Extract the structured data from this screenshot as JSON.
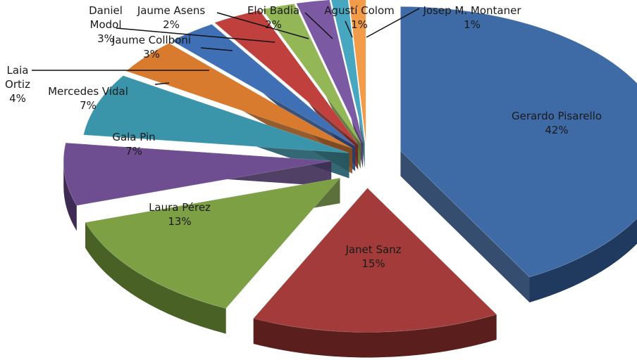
{
  "chart_data": {
    "type": "pie",
    "style": "3d exploded",
    "legend": "none",
    "slices": [
      {
        "name": "Gerardo Pisarello",
        "value": 42,
        "label": "42%",
        "color": "#3e6aa5",
        "dark": "#1f3a5e"
      },
      {
        "name": "Janet Sanz",
        "value": 15,
        "label": "15%",
        "color": "#a23b3a",
        "dark": "#5a1e1d"
      },
      {
        "name": "Laura Pérez",
        "value": 13,
        "label": "13%",
        "color": "#7ea044",
        "dark": "#4a6126"
      },
      {
        "name": "Gala Pin",
        "value": 7,
        "label": "7%",
        "color": "#6e4d91",
        "dark": "#3e2b54"
      },
      {
        "name": "Mercedes Vidal",
        "value": 7,
        "label": "7%",
        "color": "#3a95aa",
        "dark": "#1e5866"
      },
      {
        "name": "Laia Ortiz",
        "value": 4,
        "label": "4%",
        "color": "#d97b2e",
        "dark": "#8a4a17"
      },
      {
        "name": "Jaume Collboni",
        "value": 3,
        "label": "3%",
        "color": "#3f6fb5",
        "dark": "#223f6b"
      },
      {
        "name": "Daniel Modol",
        "value": 3,
        "label": "3%",
        "color": "#c0403e",
        "dark": "#6f2120"
      },
      {
        "name": "Jaume Asens",
        "value": 2,
        "label": "2%",
        "color": "#93b656",
        "dark": "#56702e"
      },
      {
        "name": "Eloi Badia",
        "value": 2,
        "label": "2%",
        "color": "#7b5aa3",
        "dark": "#45315e"
      },
      {
        "name": "Agustí Colom",
        "value": 1,
        "label": "1%",
        "color": "#48a7c0",
        "dark": "#24616f"
      },
      {
        "name": "Josep M. Montaner",
        "value": 1,
        "label": "1%",
        "color": "#f29b48",
        "dark": "#9a5a1e"
      }
    ]
  }
}
